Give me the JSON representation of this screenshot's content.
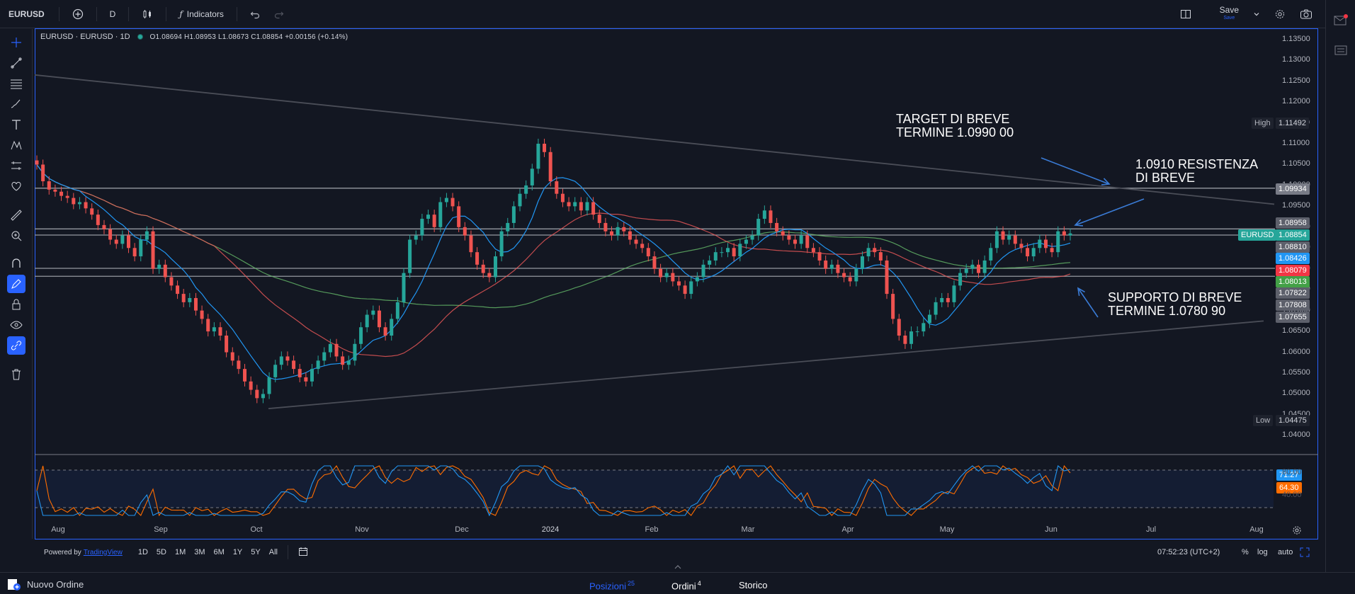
{
  "toolbar": {
    "symbol": "EURUSD",
    "interval": "D",
    "indicators_label": "Indicators",
    "save_label": "Save",
    "save_sub": "Save"
  },
  "legend": {
    "title": "EURUSD · EURUSD · 1D",
    "ohlc": "O1.08694 H1.08953 L1.08673 C1.08854 +0.00156 (+0.14%)"
  },
  "annotations": {
    "target_line1": "TARGET DI BREVE",
    "target_line2": "TERMINE 1.0990 00",
    "resist_line1": "1.0910 RESISTENZA",
    "resist_line2": "DI BREVE",
    "support_line1": "SUPPORTO DI BREVE",
    "support_line2": "TERMINE 1.0780 90"
  },
  "price_axis": [
    "1.13500",
    "1.13000",
    "1.12500",
    "1.12000",
    "1.11500",
    "1.11000",
    "1.10500",
    "1.10000",
    "1.09500",
    "1.09000",
    "1.08500",
    "1.08000",
    "1.07500",
    "1.07000",
    "1.06500",
    "1.06000",
    "1.05500",
    "1.05000",
    "1.04500",
    "1.04000"
  ],
  "price_tags": {
    "high_label": "High",
    "high_value": "1.11492",
    "low_label": "Low",
    "low_value": "1.04475",
    "tag_09934": "1.09934",
    "tag_08958": "1.08958",
    "symbol_tag": "EURUSD",
    "last_price": "1.08854",
    "tag_08810": "1.08810",
    "ma_blue": "1.08426",
    "ma_red": "1.08079",
    "ma_green": "1.08013",
    "tag_07822": "1.07822",
    "tag_07808": "1.07808",
    "tag_07655": "1.07655"
  },
  "oscillator": {
    "k_value": "71.27",
    "d_value": "64.30",
    "level_high": "80.00",
    "level_low": "40.00"
  },
  "time_axis": [
    "Aug",
    "Sep",
    "Oct",
    "Nov",
    "Dec",
    "2024",
    "Feb",
    "Mar",
    "Apr",
    "May",
    "Jun",
    "Jul",
    "Aug"
  ],
  "bottom": {
    "powered": "Powered by",
    "powered_link": "TradingView",
    "ranges": [
      "1D",
      "5D",
      "1M",
      "3M",
      "6M",
      "1Y",
      "5Y",
      "All"
    ],
    "clock": "07:52:23 (UTC+2)",
    "percent": "%",
    "log": "log",
    "auto": "auto"
  },
  "footer": {
    "new_order": "Nuovo Ordine",
    "positions": "Posizioni",
    "positions_count": "25",
    "orders": "Ordini",
    "orders_count": "4",
    "history": "Storico"
  },
  "colors": {
    "up": "#26a69a",
    "down": "#ef5350",
    "ma_blue": "#2196f3",
    "ma_red": "#f05a5a",
    "ma_green": "#66bb6a",
    "accent": "#2962ff"
  },
  "chart_data": {
    "type": "candlestick",
    "price_min": 1.0365,
    "price_max": 1.1375,
    "last": 1.08854,
    "trendline_upper": [
      [
        0,
        1.1265
      ],
      [
        1750,
        1.0955
      ]
    ],
    "trendline_lower": [
      [
        330,
        1.0465
      ],
      [
        1735,
        1.0675
      ]
    ],
    "hlines": [
      1.09934,
      1.08958,
      1.0881,
      1.08013,
      1.07822
    ],
    "closes": [
      1.105,
      1.101,
      1.099,
      1.0985,
      1.0975,
      1.097,
      1.0955,
      1.096,
      1.0945,
      1.093,
      1.0905,
      1.0895,
      1.087,
      1.086,
      1.088,
      1.085,
      1.083,
      1.087,
      1.089,
      1.08,
      1.081,
      1.078,
      1.076,
      1.074,
      1.072,
      1.073,
      1.07,
      1.068,
      1.065,
      1.066,
      1.064,
      1.06,
      1.058,
      1.056,
      1.053,
      1.051,
      1.049,
      1.05,
      1.054,
      1.057,
      1.059,
      1.058,
      1.056,
      1.054,
      1.053,
      1.056,
      1.058,
      1.06,
      1.062,
      1.059,
      1.057,
      1.058,
      1.062,
      1.066,
      1.069,
      1.07,
      1.066,
      1.064,
      1.068,
      1.072,
      1.079,
      1.087,
      1.088,
      1.092,
      1.093,
      1.09,
      1.096,
      1.097,
      1.095,
      1.09,
      1.088,
      1.084,
      1.081,
      1.079,
      1.078,
      1.083,
      1.089,
      1.091,
      1.095,
      1.098,
      1.1,
      1.104,
      1.11,
      1.108,
      1.101,
      1.098,
      1.096,
      1.095,
      1.096,
      1.094,
      1.096,
      1.093,
      1.091,
      1.089,
      1.088,
      1.09,
      1.089,
      1.087,
      1.086,
      1.085,
      1.083,
      1.08,
      1.078,
      1.079,
      1.077,
      1.076,
      1.074,
      1.077,
      1.078,
      1.081,
      1.082,
      1.084,
      1.084,
      1.085,
      1.083,
      1.086,
      1.087,
      1.088,
      1.092,
      1.094,
      1.091,
      1.089,
      1.088,
      1.087,
      1.086,
      1.088,
      1.085,
      1.084,
      1.082,
      1.08,
      1.081,
      1.079,
      1.078,
      1.077,
      1.08,
      1.083,
      1.085,
      1.084,
      1.082,
      1.074,
      1.068,
      1.064,
      1.062,
      1.065,
      1.065,
      1.067,
      1.069,
      1.072,
      1.073,
      1.072,
      1.076,
      1.079,
      1.08,
      1.081,
      1.079,
      1.082,
      1.085,
      1.089,
      1.087,
      1.088,
      1.086,
      1.085,
      1.083,
      1.085,
      1.087,
      1.085,
      1.084,
      1.089,
      1.088,
      1.0885
    ]
  }
}
